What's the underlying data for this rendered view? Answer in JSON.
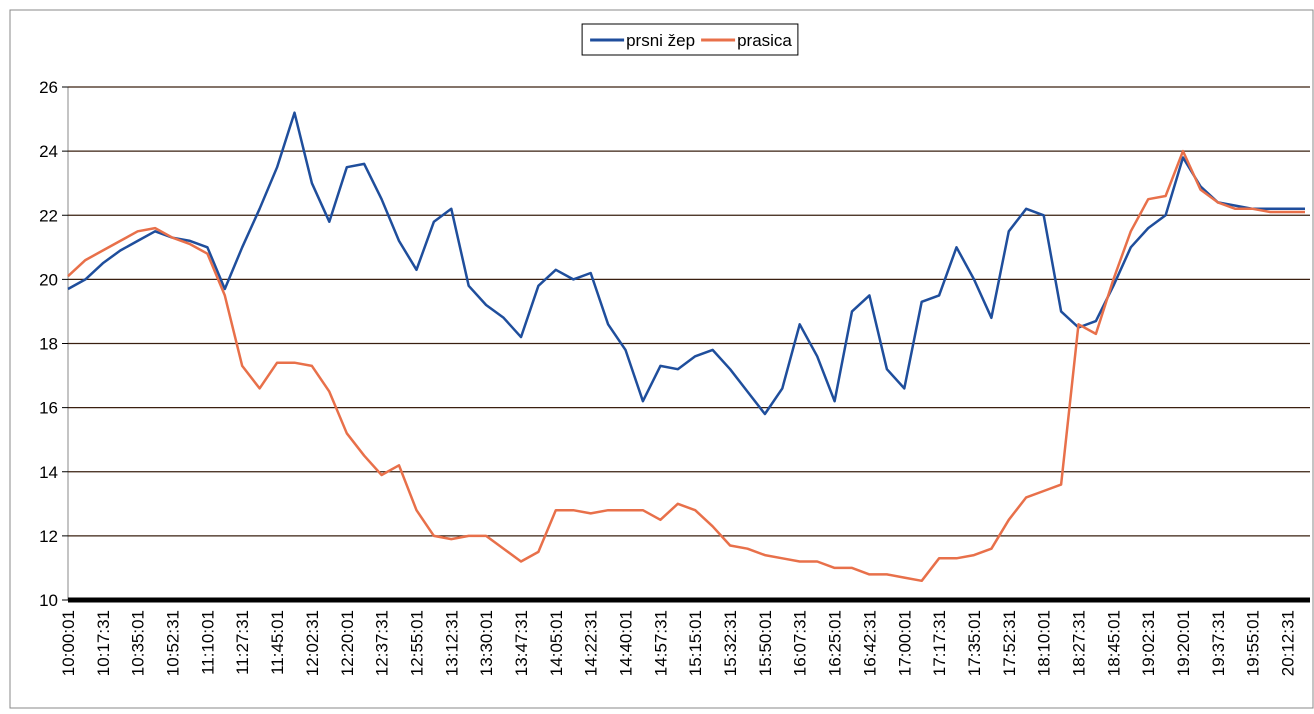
{
  "chart_data": {
    "type": "line",
    "categories": [
      "10:00:01",
      null,
      "10:17:31",
      null,
      "10:35:01",
      null,
      "10:52:31",
      null,
      "11:10:01",
      null,
      "11:27:31",
      null,
      "11:45:01",
      null,
      "12:02:31",
      null,
      "12:20:01",
      null,
      "12:37:31",
      null,
      "12:55:01",
      null,
      "13:12:31",
      null,
      "13:30:01",
      null,
      "13:47:31",
      null,
      "14:05:01",
      null,
      "14:22:31",
      null,
      "14:40:01",
      null,
      "14:57:31",
      null,
      "15:15:01",
      null,
      "15:32:31",
      null,
      "15:50:01",
      null,
      "16:07:31",
      null,
      "16:25:01",
      null,
      "16:42:31",
      null,
      "17:00:01",
      null,
      "17:17:31",
      null,
      "17:35:01",
      null,
      "17:52:31",
      null,
      "18:10:01",
      null,
      "18:27:31",
      null,
      "18:45:01",
      null,
      "19:02:31",
      null,
      "19:20:01",
      null,
      "19:37:31",
      null,
      "19:55:01",
      null,
      "20:12:31",
      null
    ],
    "series": [
      {
        "name": "prsni žep",
        "color": "#1f4e9c",
        "values": [
          19.7,
          20.0,
          20.5,
          20.9,
          21.2,
          21.5,
          21.3,
          21.2,
          21.0,
          19.7,
          21.0,
          22.2,
          23.5,
          25.2,
          23.0,
          21.8,
          23.5,
          23.6,
          22.5,
          21.2,
          20.3,
          21.8,
          22.2,
          19.8,
          19.2,
          18.8,
          18.2,
          19.8,
          20.3,
          20.0,
          20.2,
          18.6,
          17.8,
          16.2,
          17.3,
          17.2,
          17.6,
          17.8,
          17.2,
          16.5,
          15.8,
          16.6,
          18.6,
          17.6,
          16.2,
          19.0,
          19.5,
          17.2,
          16.6,
          19.3,
          19.5,
          21.0,
          20.0,
          18.8,
          21.5,
          22.2,
          22.0,
          19.0,
          18.5,
          18.7,
          19.8,
          21.0,
          21.6,
          22.0,
          23.8,
          22.9,
          22.4,
          22.3,
          22.2,
          22.2,
          22.2,
          22.2
        ]
      },
      {
        "name": "prasica",
        "color": "#e8704a",
        "values": [
          20.1,
          20.6,
          20.9,
          21.2,
          21.5,
          21.6,
          21.3,
          21.1,
          20.8,
          19.5,
          17.3,
          16.6,
          17.4,
          17.4,
          17.3,
          16.5,
          15.2,
          14.5,
          13.9,
          14.2,
          12.8,
          12.0,
          11.9,
          12.0,
          12.0,
          11.6,
          11.2,
          11.5,
          12.8,
          12.8,
          12.7,
          12.8,
          12.8,
          12.8,
          12.5,
          13.0,
          12.8,
          12.3,
          11.7,
          11.6,
          11.4,
          11.3,
          11.2,
          11.2,
          11.0,
          11.0,
          10.8,
          10.8,
          10.7,
          10.6,
          11.3,
          11.3,
          11.4,
          11.6,
          12.5,
          13.2,
          13.4,
          13.6,
          18.6,
          18.3,
          20.0,
          21.5,
          22.5,
          22.6,
          24.0,
          22.8,
          22.4,
          22.2,
          22.2,
          22.1,
          22.1,
          22.1
        ]
      }
    ],
    "ylim": [
      10,
      26
    ],
    "yticks": [
      10,
      12,
      14,
      16,
      18,
      20,
      22,
      24,
      26
    ],
    "grid": true,
    "legend": "top"
  }
}
